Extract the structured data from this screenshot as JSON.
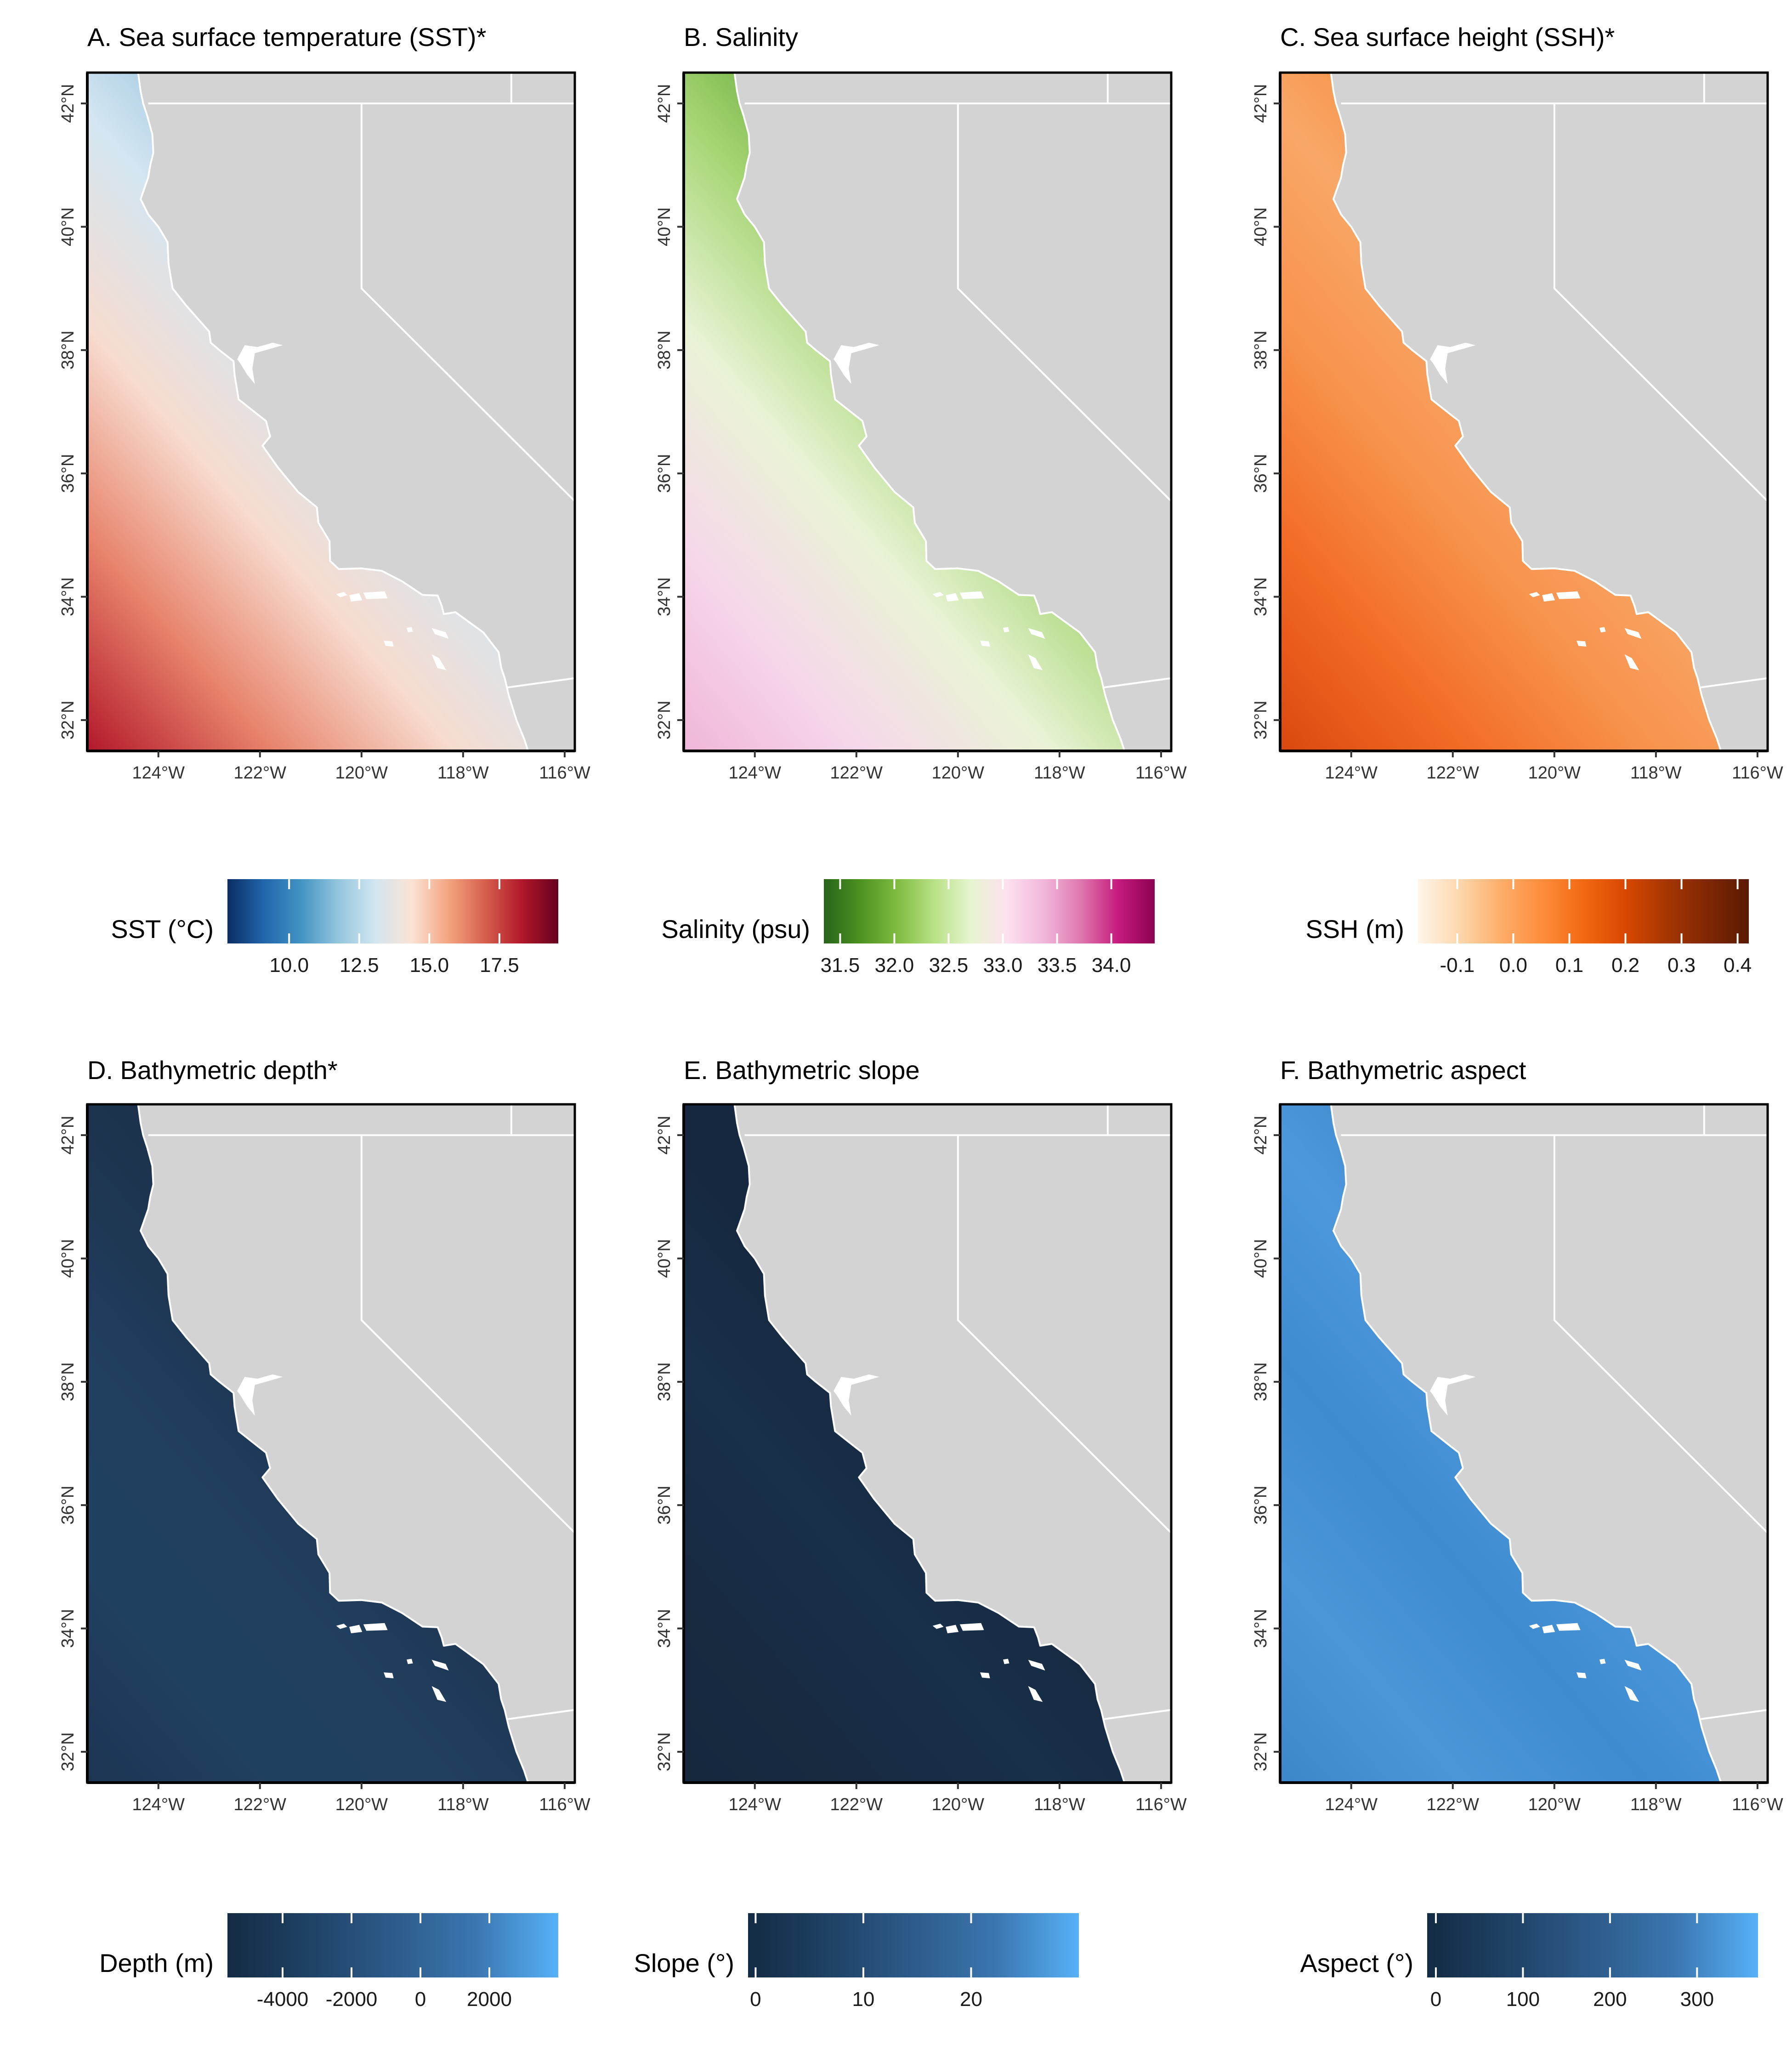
{
  "panels": [
    {
      "id": "sst",
      "title": "A. Sea surface temperature (SST)*",
      "ocean_gradient": [
        "#b2182b",
        "#e7826a",
        "#f7dccf",
        "#d4e6f1",
        "#8fbedc",
        "#4b8fc4"
      ],
      "legend": {
        "title": "SST (°C)",
        "colors": [
          "#0b2d63",
          "#2166ac",
          "#4393c3",
          "#92c5de",
          "#d1e5f0",
          "#fbe3d6",
          "#f4a582",
          "#d6604d",
          "#b2182b",
          "#67001f"
        ],
        "min": 7.8,
        "max": 19.6,
        "ticks": [
          {
            "v": 10.0,
            "label": "10.0"
          },
          {
            "v": 12.5,
            "label": "12.5"
          },
          {
            "v": 15.0,
            "label": "15.0"
          },
          {
            "v": 17.5,
            "label": "17.5"
          }
        ]
      }
    },
    {
      "id": "salinity",
      "title": "B. Salinity",
      "ocean_gradient": [
        "#f0b6d9",
        "#f6d8ea",
        "#e9f3d6",
        "#a7d675",
        "#5ea332",
        "#3a7f1c"
      ],
      "legend": {
        "title": "Salinity (psu)",
        "colors": [
          "#276419",
          "#4d9221",
          "#7fbc41",
          "#b8e186",
          "#e6f5d0",
          "#fde0ef",
          "#f1b6da",
          "#de77ae",
          "#c51b7d",
          "#8e0152"
        ],
        "min": 31.35,
        "max": 34.4,
        "ticks": [
          {
            "v": 31.5,
            "label": "31.5"
          },
          {
            "v": 32.0,
            "label": "32.0"
          },
          {
            "v": 32.5,
            "label": "32.5"
          },
          {
            "v": 33.0,
            "label": "33.0"
          },
          {
            "v": 33.5,
            "label": "33.5"
          },
          {
            "v": 34.0,
            "label": "34.0"
          }
        ]
      }
    },
    {
      "id": "ssh",
      "title": "C. Sea surface height (SSH)*",
      "ocean_gradient": [
        "#d9480f",
        "#f26b25",
        "#f7924c",
        "#f9a767",
        "#f48a3c",
        "#f06e22"
      ],
      "legend": {
        "title": "SSH (m)",
        "colors": [
          "#fff5eb",
          "#fdd7ae",
          "#fdae6b",
          "#fd8d3c",
          "#f16913",
          "#d94801",
          "#a63603",
          "#7f2704",
          "#5a1a02"
        ],
        "min": -0.17,
        "max": 0.42,
        "ticks": [
          {
            "v": -0.1,
            "label": "-0.1"
          },
          {
            "v": 0.0,
            "label": "0.0"
          },
          {
            "v": 0.1,
            "label": "0.1"
          },
          {
            "v": 0.2,
            "label": "0.2"
          },
          {
            "v": 0.3,
            "label": "0.3"
          },
          {
            "v": 0.4,
            "label": "0.4"
          }
        ]
      }
    },
    {
      "id": "depth",
      "title": "D. Bathymetric depth*",
      "ocean_gradient": [
        "#1c3552",
        "#20405f",
        "#213f5f",
        "#1d3550",
        "#1a2f48",
        "#2a5580"
      ],
      "legend": {
        "title": "Depth (m)",
        "colors": [
          "#132b43",
          "#1f4266",
          "#2d5b8a",
          "#3b76b0",
          "#56b1f7"
        ],
        "min": -5600,
        "max": 4000,
        "ticks": [
          {
            "v": -4000,
            "label": "-4000"
          },
          {
            "v": -2000,
            "label": "-2000"
          },
          {
            "v": 0,
            "label": "0"
          },
          {
            "v": 2000,
            "label": "2000"
          }
        ]
      }
    },
    {
      "id": "slope",
      "title": "E. Bathymetric slope",
      "ocean_gradient": [
        "#16283e",
        "#172a41",
        "#18304a",
        "#16283f",
        "#152740",
        "#1a3450"
      ],
      "legend": {
        "title": "Slope (°)",
        "colors": [
          "#132b43",
          "#1f4266",
          "#2d5b8a",
          "#3b76b0",
          "#56b1f7"
        ],
        "min": -0.7,
        "max": 30,
        "ticks": [
          {
            "v": 0,
            "label": "0"
          },
          {
            "v": 10,
            "label": "10"
          },
          {
            "v": 20,
            "label": "20"
          }
        ]
      }
    },
    {
      "id": "aspect",
      "title": "F. Bathymetric aspect",
      "ocean_gradient": [
        "#3d86c9",
        "#4b96d9",
        "#3f8bd0",
        "#4d98dd",
        "#3b84c8",
        "#4a95d8"
      ],
      "legend": {
        "title": "Aspect (°)",
        "colors": [
          "#132b43",
          "#1f4266",
          "#2d5b8a",
          "#3b76b0",
          "#56b1f7"
        ],
        "min": -10,
        "max": 370,
        "ticks": [
          {
            "v": 0,
            "label": "0"
          },
          {
            "v": 100,
            "label": "100"
          },
          {
            "v": 200,
            "label": "200"
          },
          {
            "v": 300,
            "label": "300"
          }
        ]
      }
    }
  ],
  "map_axes": {
    "lon_labels": [
      "124°W",
      "122°W",
      "120°W",
      "118°W",
      "116°W"
    ],
    "lat_labels": [
      "42°N",
      "40°N",
      "38°N",
      "36°N",
      "34°N",
      "32°N"
    ]
  },
  "colors": {
    "land": "#d3d3d3",
    "borders": "#ffffff"
  }
}
